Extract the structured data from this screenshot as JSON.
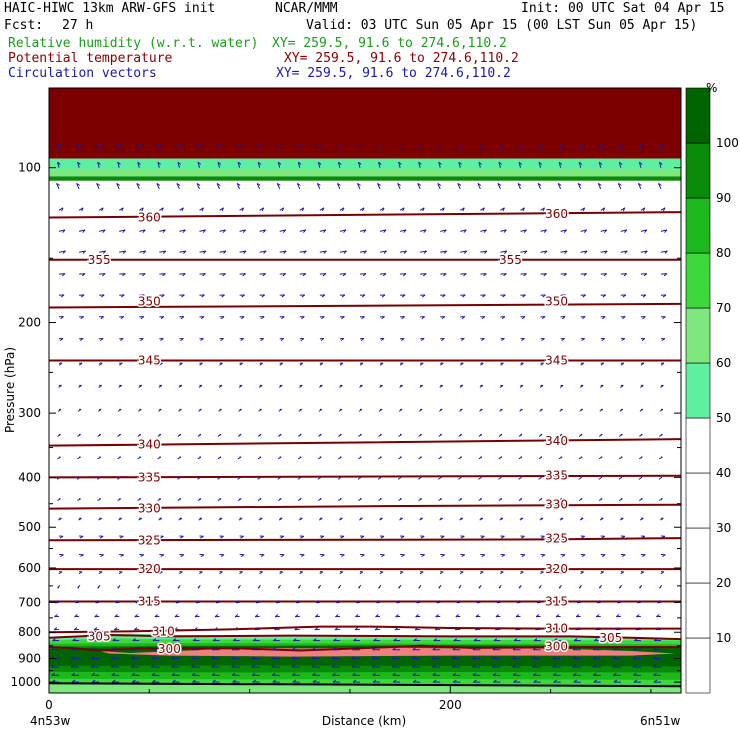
{
  "header": {
    "model": "HAIC-HIWC 13km ARW-GFS init",
    "org": "NCAR/MMM",
    "init": "Init: 00 UTC Sat 04 Apr 15",
    "fcst_label": "Fcst:",
    "fcst_value": "27 h",
    "valid": "Valid: 03 UTC Sun 05 Apr 15 (00 LST Sun 05 Apr 15)"
  },
  "fields": [
    {
      "name": "Relative humidity (w.r.t. water)",
      "xy": "XY= 259.5, 91.6 to 274.6,110.2",
      "color": "#1a9e1a"
    },
    {
      "name": "Potential temperature",
      "xy": "XY= 259.5, 91.6 to 274.6,110.2",
      "color": "#8b0000"
    },
    {
      "name": "Circulation vectors",
      "xy": "XY= 259.5, 91.6 to 274.6,110.2",
      "color": "#1a1aa6"
    }
  ],
  "chart_data": {
    "type": "cross-section",
    "xlabel": "Distance (km)",
    "ylabel": "Pressure (hPa)",
    "xlim": [
      0,
      315
    ],
    "x_ticks": [
      "0",
      "200"
    ],
    "x_tick_values": [
      0,
      200
    ],
    "x_end_labels": [
      "4n53w",
      "6n51w"
    ],
    "ylim": [
      1050,
      70
    ],
    "y_scale": "log",
    "y_ticks": [
      "100",
      "200",
      "300",
      "400",
      "500",
      "600",
      "700",
      "800",
      "900",
      "1000"
    ],
    "y_tick_values": [
      100,
      200,
      300,
      400,
      500,
      600,
      700,
      800,
      900,
      1000
    ],
    "colorbar": {
      "unit": "%",
      "labels": [
        "10",
        "20",
        "30",
        "40",
        "50",
        "60",
        "70",
        "80",
        "90",
        "100"
      ],
      "levels": [
        0,
        10,
        20,
        30,
        40,
        50,
        60,
        70,
        80,
        90,
        100,
        110
      ],
      "colors": [
        "#ffffff",
        "#ffffff",
        "#ffffff",
        "#ffffff",
        "#ffffff",
        "#5ef0a0",
        "#7ee87e",
        "#3cd83c",
        "#1cb81c",
        "#0a8a0a",
        "#006400",
        "#f08080"
      ]
    },
    "theta_contours": [
      {
        "value": 300,
        "label": "300",
        "points": [
          [
            0,
            855
          ],
          [
            10,
            858
          ],
          [
            25,
            868
          ],
          [
            45,
            860
          ],
          [
            95,
            860
          ],
          [
            125,
            868
          ],
          [
            160,
            858
          ],
          [
            185,
            850
          ],
          [
            210,
            858
          ],
          [
            260,
            855
          ],
          [
            315,
            855
          ]
        ]
      },
      {
        "value": 305,
        "label": "305",
        "points": [
          [
            0,
            820
          ],
          [
            15,
            815
          ],
          [
            30,
            810
          ],
          [
            60,
            815
          ],
          [
            120,
            812
          ],
          [
            200,
            815
          ],
          [
            260,
            815
          ],
          [
            290,
            820
          ],
          [
            315,
            825
          ]
        ]
      },
      {
        "value": 310,
        "label": "310",
        "points": [
          [
            0,
            800
          ],
          [
            40,
            797
          ],
          [
            90,
            790
          ],
          [
            135,
            780
          ],
          [
            160,
            780
          ],
          [
            200,
            785
          ],
          [
            250,
            787
          ],
          [
            315,
            787
          ]
        ]
      },
      {
        "value": 315,
        "label": "315",
        "points": [
          [
            0,
            697
          ],
          [
            315,
            697
          ]
        ]
      },
      {
        "value": 320,
        "label": "320",
        "points": [
          [
            0,
            603
          ],
          [
            315,
            603
          ]
        ]
      },
      {
        "value": 325,
        "label": "325",
        "points": [
          [
            0,
            530
          ],
          [
            250,
            528
          ],
          [
            315,
            525
          ]
        ]
      },
      {
        "value": 330,
        "label": "330",
        "points": [
          [
            0,
            460
          ],
          [
            160,
            455
          ],
          [
            315,
            452
          ]
        ]
      },
      {
        "value": 335,
        "label": "335",
        "points": [
          [
            0,
            400
          ],
          [
            315,
            397
          ]
        ]
      },
      {
        "value": 340,
        "label": "340",
        "points": [
          [
            0,
            347
          ],
          [
            160,
            342
          ],
          [
            315,
            337
          ]
        ]
      },
      {
        "value": 345,
        "label": "345",
        "points": [
          [
            0,
            237
          ],
          [
            315,
            237
          ]
        ]
      },
      {
        "value": 350,
        "label": "350",
        "points": [
          [
            0,
            187
          ],
          [
            315,
            184
          ]
        ]
      },
      {
        "value": 355,
        "label": "355",
        "points": [
          [
            0,
            151
          ],
          [
            315,
            151
          ]
        ]
      },
      {
        "value": 360,
        "label": "360",
        "points": [
          [
            0,
            125
          ],
          [
            315,
            122
          ]
        ]
      }
    ],
    "contour_labels": [
      {
        "text": "360",
        "x": 50,
        "p": 125
      },
      {
        "text": "360",
        "x": 253,
        "p": 123
      },
      {
        "text": "355",
        "x": 25,
        "p": 151
      },
      {
        "text": "355",
        "x": 230,
        "p": 151
      },
      {
        "text": "350",
        "x": 50,
        "p": 182
      },
      {
        "text": "350",
        "x": 253,
        "p": 182
      },
      {
        "text": "345",
        "x": 50,
        "p": 237
      },
      {
        "text": "345",
        "x": 253,
        "p": 237
      },
      {
        "text": "340",
        "x": 50,
        "p": 345
      },
      {
        "text": "340",
        "x": 253,
        "p": 340
      },
      {
        "text": "335",
        "x": 50,
        "p": 400
      },
      {
        "text": "335",
        "x": 253,
        "p": 397
      },
      {
        "text": "330",
        "x": 50,
        "p": 460
      },
      {
        "text": "330",
        "x": 253,
        "p": 452
      },
      {
        "text": "325",
        "x": 50,
        "p": 530
      },
      {
        "text": "325",
        "x": 253,
        "p": 526
      },
      {
        "text": "320",
        "x": 50,
        "p": 603
      },
      {
        "text": "320",
        "x": 253,
        "p": 603
      },
      {
        "text": "315",
        "x": 50,
        "p": 697
      },
      {
        "text": "315",
        "x": 253,
        "p": 697
      },
      {
        "text": "310",
        "x": 57,
        "p": 797
      },
      {
        "text": "310",
        "x": 253,
        "p": 787
      },
      {
        "text": "305",
        "x": 25,
        "p": 815
      },
      {
        "text": "305",
        "x": 280,
        "p": 820
      },
      {
        "text": "300",
        "x": 60,
        "p": 862
      },
      {
        "text": "300",
        "x": 253,
        "p": 852
      }
    ],
    "rh_layers": [
      {
        "color": "#7c0000",
        "top": 70,
        "bottom": 96
      },
      {
        "color": "#5ef0a0",
        "top": 96,
        "bottom": 101
      },
      {
        "color": "#7ee87e",
        "top": 101,
        "bottom": 104
      },
      {
        "color": "#0a8a0a",
        "top": 104,
        "bottom": 106
      }
    ],
    "rh_lower": [
      {
        "color": "#5ef0a0",
        "top_points": [
          [
            0,
            823
          ],
          [
            20,
            812
          ],
          [
            40,
            804
          ],
          [
            60,
            810
          ],
          [
            120,
            812
          ],
          [
            200,
            815
          ],
          [
            280,
            818
          ],
          [
            315,
            822
          ]
        ]
      },
      {
        "color": "#3cd83c",
        "top_points": [
          [
            0,
            830
          ],
          [
            30,
            822
          ],
          [
            60,
            826
          ],
          [
            200,
            828
          ],
          [
            315,
            830
          ]
        ]
      },
      {
        "color": "#1cb81c",
        "top_points": [
          [
            0,
            842
          ],
          [
            60,
            840
          ],
          [
            200,
            842
          ],
          [
            315,
            844
          ]
        ]
      },
      {
        "color": "#0a8a0a",
        "top_points": [
          [
            0,
            852
          ],
          [
            60,
            850
          ],
          [
            200,
            850
          ],
          [
            315,
            852
          ]
        ]
      },
      {
        "color": "#006400",
        "top_points": [
          [
            0,
            862
          ],
          [
            30,
            856
          ],
          [
            60,
            852
          ],
          [
            200,
            848
          ],
          [
            315,
            852
          ]
        ]
      },
      {
        "color": "#f08080",
        "top_points": [
          [
            25,
            870
          ],
          [
            40,
            878
          ],
          [
            70,
            868
          ],
          [
            95,
            858
          ],
          [
            130,
            860
          ],
          [
            160,
            856
          ],
          [
            200,
            860
          ],
          [
            250,
            860
          ],
          [
            290,
            870
          ],
          [
            312,
            880
          ],
          [
            290,
            888
          ],
          [
            200,
            888
          ],
          [
            120,
            892
          ],
          [
            60,
            888
          ],
          [
            30,
            880
          ],
          [
            25,
            870
          ]
        ]
      },
      {
        "color": "#006400",
        "top_points": [
          [
            0,
            900
          ],
          [
            80,
            902
          ],
          [
            200,
            898
          ],
          [
            315,
            900
          ]
        ]
      },
      {
        "color": "#0a8a0a",
        "top_points": [
          [
            0,
            930
          ],
          [
            100,
            928
          ],
          [
            200,
            930
          ],
          [
            315,
            932
          ]
        ]
      },
      {
        "color": "#1cb81c",
        "top_points": [
          [
            0,
            955
          ],
          [
            100,
            958
          ],
          [
            200,
            956
          ],
          [
            315,
            958
          ]
        ]
      },
      {
        "color": "#3cd83c",
        "top_points": [
          [
            0,
            985
          ],
          [
            100,
            988
          ],
          [
            200,
            986
          ],
          [
            315,
            990
          ]
        ]
      },
      {
        "color": "#7ee87e",
        "top_points": [
          [
            0,
            1010
          ],
          [
            100,
            1012
          ],
          [
            200,
            1010
          ],
          [
            315,
            1014
          ]
        ]
      }
    ],
    "surface_p": 1005,
    "wind_x": [
      5,
      15,
      25,
      35,
      45,
      55,
      65,
      75,
      85,
      95,
      105,
      115,
      125,
      135,
      145,
      155,
      165,
      175,
      185,
      195,
      205,
      215,
      225,
      235,
      245,
      255,
      265,
      275,
      285,
      295,
      305
    ],
    "wind_levels": [
      {
        "p": 92,
        "u": -0.2,
        "w": -4.5
      },
      {
        "p": 100,
        "u": -0.3,
        "w": -5.5
      },
      {
        "p": 110,
        "u": -0.5,
        "w": -5.5
      },
      {
        "p": 121,
        "u": 0.8,
        "w": -2.5
      },
      {
        "p": 133,
        "u": 1.2,
        "w": -1.5
      },
      {
        "p": 146,
        "u": 1.3,
        "w": -1.2
      },
      {
        "p": 161,
        "u": 1.2,
        "w": -0.5
      },
      {
        "p": 177,
        "u": 1.0,
        "w": -0.4
      },
      {
        "p": 195,
        "u": 0.9,
        "w": -0.3
      },
      {
        "p": 215,
        "u": 0.8,
        "w": -0.2
      },
      {
        "p": 240,
        "u": 0.6,
        "w": -0.1
      },
      {
        "p": 265,
        "u": 0.5,
        "w": 0.0
      },
      {
        "p": 295,
        "u": 0.4,
        "w": 0.0
      },
      {
        "p": 330,
        "u": 0.3,
        "w": 0.0
      },
      {
        "p": 365,
        "u": 0.3,
        "w": 0.1
      },
      {
        "p": 400,
        "u": 0.2,
        "w": 0.0
      },
      {
        "p": 440,
        "u": 0.3,
        "w": 0.1
      },
      {
        "p": 480,
        "u": 0.5,
        "w": 0.3
      },
      {
        "p": 520,
        "u": 0.8,
        "w": 0.3
      },
      {
        "p": 565,
        "u": 0.9,
        "w": 0.2
      },
      {
        "p": 610,
        "u": 0.6,
        "w": 0.2
      },
      {
        "p": 655,
        "u": -0.3,
        "w": 0.4
      },
      {
        "p": 700,
        "u": -0.7,
        "w": 0.5
      },
      {
        "p": 745,
        "u": -0.9,
        "w": 0.4
      },
      {
        "p": 790,
        "u": -1.0,
        "w": 0.3
      },
      {
        "p": 830,
        "u": -1.3,
        "w": 0.2
      },
      {
        "p": 865,
        "u": -1.5,
        "w": 0.1
      },
      {
        "p": 900,
        "u": -1.6,
        "w": 0.1
      },
      {
        "p": 935,
        "u": -1.6,
        "w": 0.0
      },
      {
        "p": 970,
        "u": -1.5,
        "w": 0.0
      },
      {
        "p": 1000,
        "u": -1.4,
        "w": 0.0
      }
    ]
  }
}
